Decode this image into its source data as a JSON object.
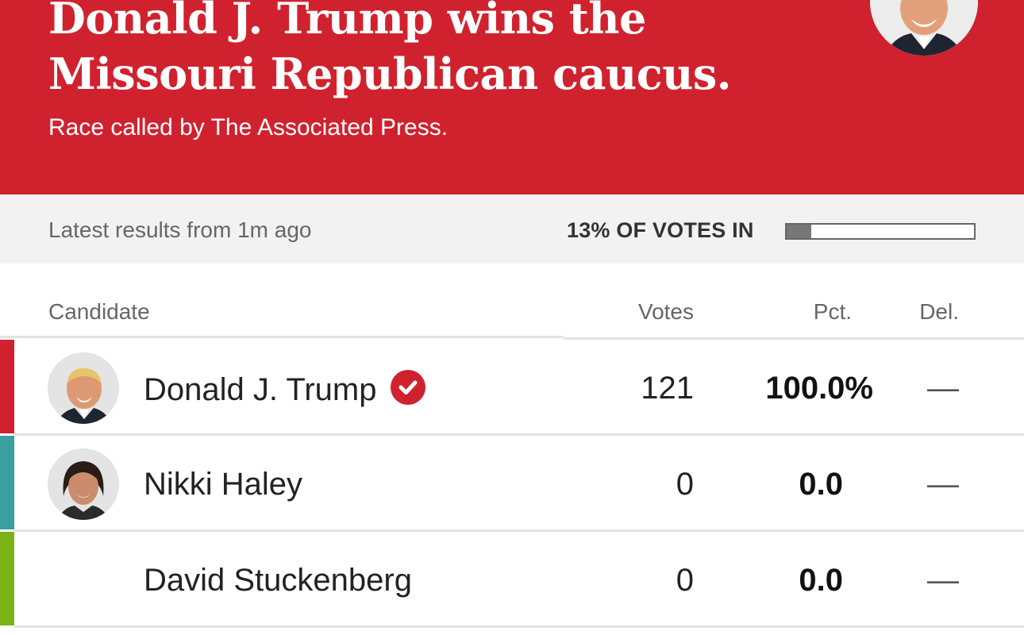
{
  "banner": {
    "headline": "Donald J. Trump wins the Missouri Republican caucus.",
    "subline": "Race called by The Associated Press.",
    "color": "#d0222e"
  },
  "status": {
    "latest": "Latest results from 1m ago",
    "votes_in_label": "13% OF VOTES IN",
    "votes_in_fraction": 0.13
  },
  "table": {
    "headers": {
      "candidate": "Candidate",
      "votes": "Votes",
      "pct": "Pct.",
      "del": "Del."
    },
    "rows": [
      {
        "name": "Donald J. Trump",
        "votes": "121",
        "pct": "100.0%",
        "del": "—",
        "color": "#d0222e",
        "winner": true,
        "avatar": "trump-avatar"
      },
      {
        "name": "Nikki Haley",
        "votes": "0",
        "pct": "0.0",
        "del": "—",
        "color": "#3a9f9f",
        "winner": false,
        "avatar": "haley-avatar"
      },
      {
        "name": "David Stuckenberg",
        "votes": "0",
        "pct": "0.0",
        "del": "—",
        "color": "#7ab317",
        "winner": false,
        "avatar": null
      }
    ]
  },
  "icons": {
    "winner": "checkmark-circle-icon"
  }
}
